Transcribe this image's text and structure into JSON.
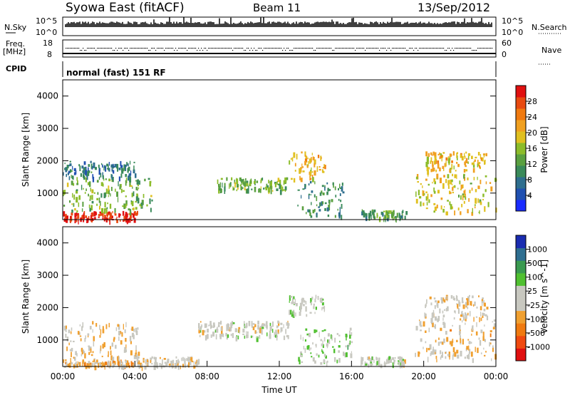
{
  "header": {
    "station": "Syowa East (fitACF)",
    "beam": "Beam 11",
    "date": "13/Sep/2012"
  },
  "top_panels": {
    "nsky_label": "N.Sky",
    "nsky_ticks": [
      "10^5",
      "10^0"
    ],
    "nsearch_label": "N.Search",
    "nsearch_ticks": [
      "10^5",
      "10^0"
    ],
    "freq_label_1": "Freq.",
    "freq_label_2": "[MHz]",
    "freq_ticks": [
      "18",
      "8"
    ],
    "nave_label": "Nave",
    "nave_ticks": [
      "60",
      "0"
    ],
    "cpid_label": "CPID",
    "cpid_text": "normal (fast) 151 RF"
  },
  "colors": {
    "power_scale": [
      "#1a2cff",
      "#2050b0",
      "#2e6e8e",
      "#3a8a5a",
      "#5aa040",
      "#8cbc2a",
      "#e0c020",
      "#f0a020",
      "#f07a10",
      "#e84a10",
      "#e01010"
    ],
    "velocity_scale": [
      "#e01010",
      "#f04a10",
      "#f07a10",
      "#f0a030",
      "#c8c8c0",
      "#c8c8c0",
      "#50c030",
      "#3a9a50",
      "#2e6e90",
      "#1a2cb0"
    ]
  },
  "chart_data": [
    {
      "type": "heatmap",
      "name_key": "power",
      "ylabel": "Slant Range [km]",
      "y_ticks": [
        "4000",
        "3000",
        "2000",
        "1000"
      ],
      "ylim": [
        180,
        4500
      ],
      "colorbar_label": "Power [dB]",
      "colorbar_ticks": [
        "28",
        "24",
        "20",
        "16",
        "12",
        "8",
        "4"
      ],
      "color_range": [
        0,
        32
      ],
      "regions": [
        {
          "t0": 0.0,
          "t1": 4.1,
          "r0": 180,
          "r1": 450,
          "v": 30
        },
        {
          "t0": 0.0,
          "t1": 5.0,
          "r0": 450,
          "r1": 1500,
          "v": 14
        },
        {
          "t0": 0.0,
          "t1": 4.0,
          "r0": 1500,
          "r1": 2000,
          "v": 8
        },
        {
          "t0": 8.5,
          "t1": 12.5,
          "r0": 1100,
          "r1": 1500,
          "v": 14
        },
        {
          "t0": 12.5,
          "t1": 14.5,
          "r0": 1400,
          "r1": 2300,
          "v": 20
        },
        {
          "t0": 13.0,
          "t1": 15.5,
          "r0": 300,
          "r1": 1400,
          "v": 10
        },
        {
          "t0": 16.5,
          "t1": 19.0,
          "r0": 250,
          "r1": 500,
          "v": 12
        },
        {
          "t0": 19.5,
          "t1": 24.0,
          "r0": 400,
          "r1": 1600,
          "v": 18
        },
        {
          "t0": 20.0,
          "t1": 23.5,
          "r0": 1700,
          "r1": 2300,
          "v": 20
        }
      ]
    },
    {
      "type": "heatmap",
      "name_key": "velocity",
      "xlabel": "Time UT",
      "x_ticks": [
        "00:00",
        "04:00",
        "08:00",
        "12:00",
        "16:00",
        "20:00",
        "00:00"
      ],
      "xlim": [
        0,
        24
      ],
      "ylabel": "Slant Range [km]",
      "y_ticks": [
        "4000",
        "3000",
        "2000",
        "1000"
      ],
      "ylim": [
        180,
        4500
      ],
      "colorbar_label": "Velocity [m s^-1]",
      "colorbar_ticks": [
        "1000",
        "500",
        "100",
        "25",
        "-25",
        "-100",
        "-500",
        "-1000"
      ],
      "color_range": [
        -1200,
        1200
      ],
      "regions": [
        {
          "t0": 0.0,
          "t1": 4.2,
          "r0": 400,
          "r1": 1600,
          "v": -180
        },
        {
          "t0": 0.0,
          "t1": 4.0,
          "r0": 200,
          "r1": 400,
          "v": -300
        },
        {
          "t0": 4.0,
          "t1": 7.5,
          "r0": 200,
          "r1": 500,
          "v": -80
        },
        {
          "t0": 7.5,
          "t1": 12.5,
          "r0": 1100,
          "r1": 1600,
          "v": 5
        },
        {
          "t0": 12.5,
          "t1": 14.5,
          "r0": 1800,
          "r1": 2400,
          "v": 150
        },
        {
          "t0": 13.0,
          "t1": 16.0,
          "r0": 300,
          "r1": 1400,
          "v": 200
        },
        {
          "t0": 16.5,
          "t1": 19.0,
          "r0": 250,
          "r1": 500,
          "v": 10
        },
        {
          "t0": 19.5,
          "t1": 24.0,
          "r0": 400,
          "r1": 1700,
          "v": -200
        },
        {
          "t0": 20.0,
          "t1": 23.5,
          "r0": 1700,
          "r1": 2400,
          "v": -120
        }
      ]
    }
  ]
}
